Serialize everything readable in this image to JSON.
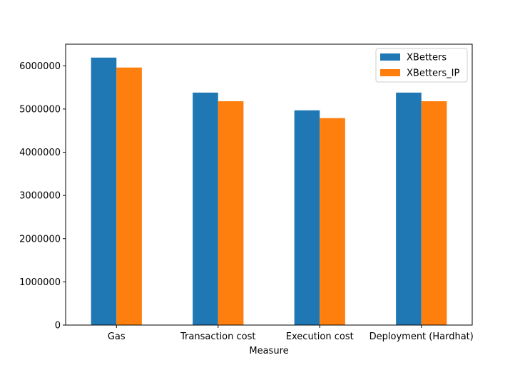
{
  "chart_data": {
    "type": "bar",
    "title": "",
    "xlabel": "Measure",
    "ylabel": "",
    "categories": [
      "Gas",
      "Transaction cost",
      "Execution cost",
      "Deployment (Hardhat)"
    ],
    "series": [
      {
        "name": "XBetters",
        "color": "#1f77b4",
        "values": [
          6190000,
          5380000,
          4970000,
          5380000
        ]
      },
      {
        "name": "XBetters_IP",
        "color": "#ff7f0e",
        "values": [
          5960000,
          5180000,
          4790000,
          5180000
        ]
      }
    ],
    "ylim": [
      0,
      6500000
    ],
    "yticks": [
      "0",
      "1000000",
      "2000000",
      "3000000",
      "4000000",
      "5000000",
      "6000000"
    ],
    "grid": false,
    "legend_position": "top-right"
  }
}
